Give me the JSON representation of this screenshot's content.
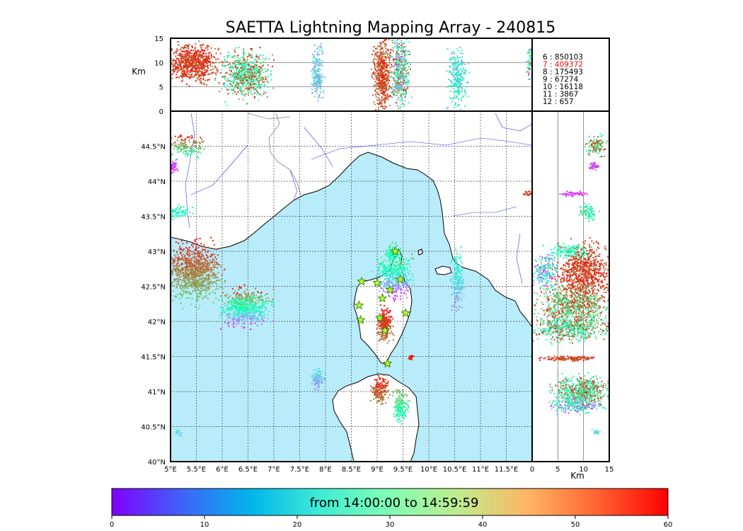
{
  "chart_data": {
    "type": "scatter",
    "title": "SAETTA Lightning Mapping Array - 240815",
    "map": {
      "lon_range": [
        5.0,
        12.0
      ],
      "lat_range": [
        40.0,
        45.0
      ],
      "x_tick_labels": [
        "5°E",
        "5.5°E",
        "6°E",
        "6.5°E",
        "7°E",
        "7.5°E",
        "8°E",
        "8.5°E",
        "9°E",
        "9.5°E",
        "10°E",
        "10.5°E",
        "11°E",
        "11.5°E"
      ],
      "y_tick_labels": [
        "40°N",
        "40.5°N",
        "41°N",
        "41.5°N",
        "42°N",
        "42.5°N",
        "43°N",
        "43.5°N",
        "44°N",
        "44.5°N"
      ],
      "grid": true,
      "stations": [
        {
          "lon": 9.35,
          "lat": 43.0
        },
        {
          "lon": 8.7,
          "lat": 42.57
        },
        {
          "lon": 9.0,
          "lat": 42.55
        },
        {
          "lon": 9.45,
          "lat": 42.6
        },
        {
          "lon": 9.25,
          "lat": 42.45
        },
        {
          "lon": 9.1,
          "lat": 42.33
        },
        {
          "lon": 8.65,
          "lat": 42.23
        },
        {
          "lon": 9.55,
          "lat": 42.12
        },
        {
          "lon": 8.68,
          "lat": 42.02
        },
        {
          "lon": 9.05,
          "lat": 42.05
        },
        {
          "lon": 9.15,
          "lat": 41.87
        },
        {
          "lon": 9.2,
          "lat": 41.4
        }
      ],
      "clusters": [
        {
          "lon": 5.45,
          "lat": 42.7,
          "rlon": 0.45,
          "rlat": 0.35,
          "n": 900,
          "tmin": 40,
          "tmax": 60
        },
        {
          "lon": 6.45,
          "lat": 42.2,
          "rlon": 0.4,
          "rlat": 0.22,
          "n": 600,
          "tmin": 0,
          "tmax": 60
        },
        {
          "lon": 5.3,
          "lat": 44.5,
          "rlon": 0.28,
          "rlat": 0.12,
          "n": 160,
          "tmin": 30,
          "tmax": 60
        },
        {
          "lon": 5.05,
          "lat": 44.22,
          "rlon": 0.08,
          "rlat": 0.08,
          "n": 50,
          "tmin": 0,
          "tmax": 10
        },
        {
          "lon": 5.15,
          "lat": 43.55,
          "rlon": 0.2,
          "rlat": 0.08,
          "n": 80,
          "tmin": 20,
          "tmax": 35
        },
        {
          "lon": 9.35,
          "lat": 42.65,
          "rlon": 0.3,
          "rlat": 0.25,
          "n": 500,
          "tmin": 0,
          "tmax": 45
        },
        {
          "lon": 9.3,
          "lat": 42.98,
          "rlon": 0.12,
          "rlat": 0.12,
          "n": 100,
          "tmin": 25,
          "tmax": 40
        },
        {
          "lon": 9.15,
          "lat": 41.95,
          "rlon": 0.12,
          "rlat": 0.2,
          "n": 260,
          "tmin": 50,
          "tmax": 60
        },
        {
          "lon": 10.55,
          "lat": 42.6,
          "rlon": 0.1,
          "rlat": 0.32,
          "n": 200,
          "tmin": 10,
          "tmax": 30
        },
        {
          "lon": 9.05,
          "lat": 41.02,
          "rlon": 0.15,
          "rlat": 0.15,
          "n": 180,
          "tmin": 48,
          "tmax": 60
        },
        {
          "lon": 9.45,
          "lat": 40.8,
          "rlon": 0.12,
          "rlat": 0.2,
          "n": 160,
          "tmin": 25,
          "tmax": 48
        },
        {
          "lon": 7.85,
          "lat": 41.18,
          "rlon": 0.1,
          "rlat": 0.12,
          "n": 110,
          "tmin": 10,
          "tmax": 22
        },
        {
          "lon": 9.65,
          "lat": 41.47,
          "rlon": 0.04,
          "rlat": 0.04,
          "n": 20,
          "tmin": 55,
          "tmax": 60
        },
        {
          "lon": 11.9,
          "lat": 43.82,
          "rlon": 0.08,
          "rlat": 0.04,
          "n": 20,
          "tmin": 50,
          "tmax": 60
        },
        {
          "lon": 5.15,
          "lat": 40.42,
          "rlon": 0.05,
          "rlat": 0.04,
          "n": 15,
          "tmin": 15,
          "tmax": 25
        }
      ]
    },
    "alt_lon": {
      "ylabel": "Km",
      "ylim": [
        0,
        15
      ],
      "y_tick_labels": [
        "0",
        "5",
        "10",
        "15"
      ],
      "clusters": [
        {
          "lon": 5.45,
          "alt": 10.0,
          "rlon": 0.4,
          "ralt": 3.5,
          "n": 700,
          "tmin": 50,
          "tmax": 60
        },
        {
          "lon": 6.45,
          "alt": 7.5,
          "rlon": 0.38,
          "ralt": 4.5,
          "n": 700,
          "tmin": 20,
          "tmax": 60
        },
        {
          "lon": 7.85,
          "alt": 8.0,
          "rlon": 0.1,
          "ralt": 5.0,
          "n": 200,
          "tmin": 10,
          "tmax": 25
        },
        {
          "lon": 9.1,
          "alt": 7.5,
          "rlon": 0.15,
          "ralt": 7.0,
          "n": 500,
          "tmin": 48,
          "tmax": 60
        },
        {
          "lon": 9.45,
          "alt": 8.0,
          "rlon": 0.15,
          "ralt": 7.0,
          "n": 450,
          "tmin": 5,
          "tmax": 60
        },
        {
          "lon": 10.55,
          "alt": 7.0,
          "rlon": 0.15,
          "ralt": 5.5,
          "n": 260,
          "tmin": 10,
          "tmax": 35
        },
        {
          "lon": 11.95,
          "alt": 10.0,
          "rlon": 0.05,
          "ralt": 3.0,
          "n": 60,
          "tmin": 0,
          "tmax": 60
        }
      ]
    },
    "alt_lat": {
      "xlabel": "Km",
      "xlim": [
        0,
        15
      ],
      "x_tick_labels": [
        "0",
        "5",
        "10",
        "15"
      ],
      "clusters": [
        {
          "lat": 42.7,
          "alt": 10.0,
          "rlat": 0.35,
          "ralt": 4.5,
          "n": 800,
          "tmin": 50,
          "tmax": 60
        },
        {
          "lat": 42.7,
          "alt": 2.5,
          "rlat": 0.2,
          "ralt": 2.2,
          "n": 200,
          "tmin": 0,
          "tmax": 40
        },
        {
          "lat": 42.2,
          "alt": 8.0,
          "rlat": 0.25,
          "ralt": 6.5,
          "n": 700,
          "tmin": 30,
          "tmax": 60
        },
        {
          "lat": 41.9,
          "alt": 7.5,
          "rlat": 0.15,
          "ralt": 6.5,
          "n": 500,
          "tmin": 20,
          "tmax": 60
        },
        {
          "lat": 41.47,
          "alt": 7.5,
          "rlat": 0.03,
          "ralt": 4.5,
          "n": 150,
          "tmin": 50,
          "tmax": 60
        },
        {
          "lat": 41.0,
          "alt": 9.5,
          "rlat": 0.18,
          "ralt": 4.5,
          "n": 600,
          "tmin": 20,
          "tmax": 60
        },
        {
          "lat": 40.8,
          "alt": 8.5,
          "rlat": 0.1,
          "ralt": 4.5,
          "n": 200,
          "tmin": 0,
          "tmax": 40
        },
        {
          "lat": 43.0,
          "alt": 7.0,
          "rlat": 0.08,
          "ralt": 4.0,
          "n": 120,
          "tmin": 25,
          "tmax": 35
        },
        {
          "lat": 43.55,
          "alt": 11.0,
          "rlat": 0.1,
          "ralt": 1.5,
          "n": 80,
          "tmin": 20,
          "tmax": 45
        },
        {
          "lat": 43.82,
          "alt": 8.0,
          "rlat": 0.03,
          "ralt": 2.5,
          "n": 60,
          "tmin": 0,
          "tmax": 10
        },
        {
          "lat": 44.5,
          "alt": 12.5,
          "rlat": 0.12,
          "ralt": 1.8,
          "n": 120,
          "tmin": 30,
          "tmax": 60
        },
        {
          "lat": 44.22,
          "alt": 12.0,
          "rlat": 0.05,
          "ralt": 0.8,
          "n": 40,
          "tmin": 0,
          "tmax": 10
        },
        {
          "lat": 40.42,
          "alt": 12.5,
          "rlat": 0.03,
          "ralt": 0.8,
          "n": 15,
          "tmin": 15,
          "tmax": 25
        }
      ]
    },
    "station_counts": [
      {
        "label": "6  :   850103",
        "color": "#000000"
      },
      {
        "label": "7  :   409372",
        "color": "#ff0000"
      },
      {
        "label": "8  :   175493",
        "color": "#000000"
      },
      {
        "label": "9  :     67274",
        "color": "#000000"
      },
      {
        "label": "10  :     16118",
        "color": "#000000"
      },
      {
        "label": "11  :      3867",
        "color": "#000000"
      },
      {
        "label": "12  :       657",
        "color": "#000000"
      }
    ],
    "colorbar": {
      "label": "from 14:00:00 to 14:59:59",
      "range": [
        0,
        60
      ],
      "tick_labels": [
        "0",
        "10",
        "20",
        "30",
        "40",
        "50",
        "60"
      ],
      "colormap": "rainbow"
    }
  },
  "colors": {
    "sea": "#b8ecfa",
    "land": "#ffffff",
    "river": "#0000ff",
    "station_marker": "#adff2f"
  }
}
